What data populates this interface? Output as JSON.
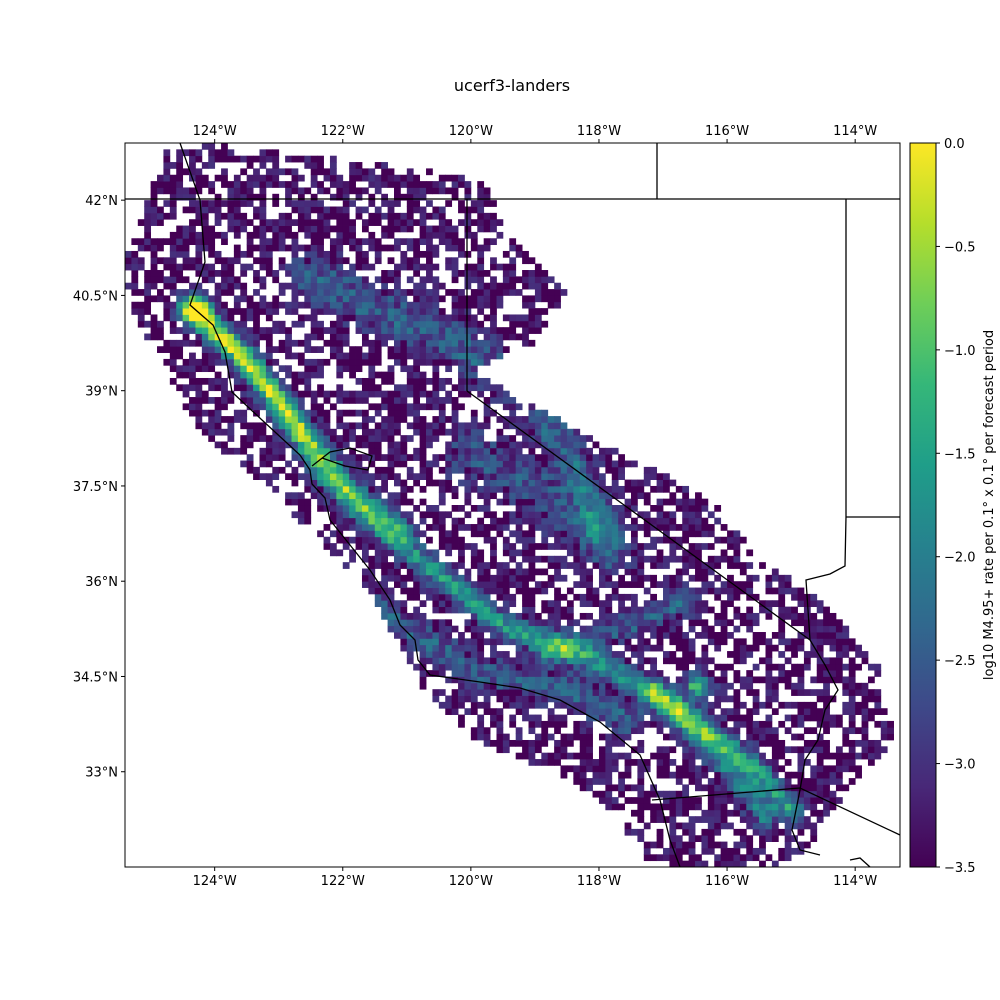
{
  "chart_data": {
    "type": "heatmap",
    "title": "ucerf3-landers",
    "xlabel": "",
    "ylabel": "",
    "x_range": [
      -125.4,
      -113.3
    ],
    "y_range": [
      31.5,
      42.9
    ],
    "x_ticks": [
      -124,
      -122,
      -120,
      -118,
      -116,
      -114
    ],
    "x_tick_labels": [
      "124°W",
      "122°W",
      "120°W",
      "118°W",
      "116°W",
      "114°W"
    ],
    "y_ticks": [
      33,
      34.5,
      36,
      37.5,
      39,
      40.5,
      42
    ],
    "y_tick_labels": [
      "33°N",
      "34.5°N",
      "36°N",
      "37.5°N",
      "39°N",
      "40.5°N",
      "42°N"
    ],
    "cell_size_deg": 0.1,
    "colormap": "viridis",
    "colorbar": {
      "label": "log10 M4.95+ rate per 0.1° x 0.1° per forecast period",
      "range": [
        -3.5,
        0.0
      ],
      "ticks": [
        0.0,
        -0.5,
        -1.0,
        -1.5,
        -2.0,
        -2.5,
        -3.0,
        -3.5
      ],
      "tick_labels": [
        "0.0",
        "−0.5",
        "−1.0",
        "−1.5",
        "−2.0",
        "−2.5",
        "−3.0",
        "−3.5"
      ]
    },
    "hotspots": [
      {
        "lon": -124.3,
        "lat": 40.3,
        "value": -0.2
      },
      {
        "lon": -116.45,
        "lat": 34.35,
        "value": -0.1
      }
    ],
    "background_value": -3.5,
    "grid": false
  },
  "colors": {
    "viridis": [
      "#440154",
      "#482878",
      "#3e4989",
      "#31688e",
      "#26828e",
      "#1f9e89",
      "#35b779",
      "#6ece58",
      "#b5de2b",
      "#fde725"
    ],
    "borders": "#000000"
  }
}
